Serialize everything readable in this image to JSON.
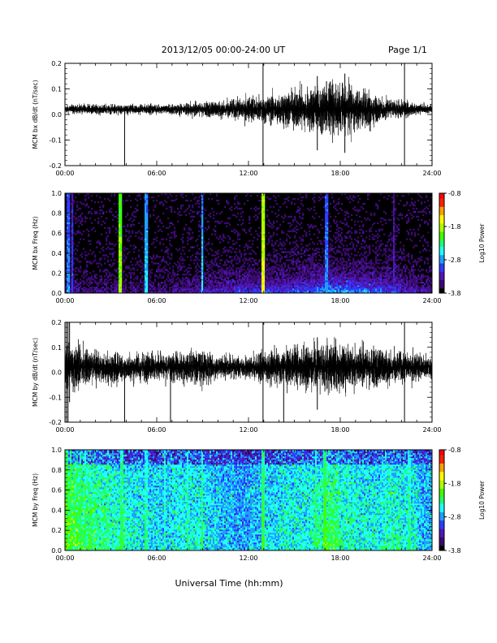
{
  "header": {
    "title": "2013/12/05  00:00-24:00 UT",
    "page_label": "Page 1/1"
  },
  "x_axis_title": "Universal Time (hh:mm)",
  "colorscale": {
    "colors": [
      "#000000",
      "#3a0a6e",
      "#4f16b4",
      "#2d3dff",
      "#1fa0ff",
      "#20ffff",
      "#20ff70",
      "#40ff00",
      "#b0ff00",
      "#ffff00",
      "#ffa000",
      "#ff2000",
      "#ff0000"
    ],
    "background": "#000000"
  },
  "chart_data": [
    {
      "type": "line",
      "ylabel": "MCM bx dB/dt (nT/sec)",
      "xticks": [
        "00:00",
        "06:00",
        "12:00",
        "18:00",
        "24:00"
      ],
      "xlim": [
        0,
        24
      ],
      "ylim": [
        -0.2,
        0.2
      ],
      "yticks": [
        "0.2",
        "0.1",
        "0.0",
        "-0.1",
        "-0.2"
      ],
      "ytick_values": [
        0.2,
        0.1,
        0.0,
        -0.1,
        -0.2
      ],
      "baseline": 0.02,
      "amplitude_profile": [
        {
          "t": 0,
          "amp": 0.01
        },
        {
          "t": 2,
          "amp": 0.012
        },
        {
          "t": 4,
          "amp": 0.012
        },
        {
          "t": 6,
          "amp": 0.012
        },
        {
          "t": 8,
          "amp": 0.015
        },
        {
          "t": 10,
          "amp": 0.02
        },
        {
          "t": 11,
          "amp": 0.025
        },
        {
          "t": 12,
          "amp": 0.03
        },
        {
          "t": 13,
          "amp": 0.035
        },
        {
          "t": 14,
          "amp": 0.04
        },
        {
          "t": 15,
          "amp": 0.05
        },
        {
          "t": 16,
          "amp": 0.055
        },
        {
          "t": 17,
          "amp": 0.065
        },
        {
          "t": 18,
          "amp": 0.06
        },
        {
          "t": 19,
          "amp": 0.05
        },
        {
          "t": 20,
          "amp": 0.04
        },
        {
          "t": 21,
          "amp": 0.03
        },
        {
          "t": 22,
          "amp": 0.02
        },
        {
          "t": 24,
          "amp": 0.01
        }
      ],
      "spikes": [
        {
          "t": 3.9,
          "lo": -0.2,
          "hi": 0.02
        },
        {
          "t": 12.95,
          "lo": -0.2,
          "hi": 0.2
        },
        {
          "t": 16.5,
          "lo": -0.14,
          "hi": 0.15
        },
        {
          "t": 17.1,
          "lo": -0.06,
          "hi": 0.13
        },
        {
          "t": 18.3,
          "lo": -0.15,
          "hi": 0.16
        },
        {
          "t": 22.2,
          "lo": -0.2,
          "hi": 0.2
        }
      ]
    },
    {
      "type": "heatmap",
      "ylabel": "MCM bx Freq (Hz)",
      "xticks": [
        "00:00",
        "06:00",
        "12:00",
        "18:00",
        "24:00"
      ],
      "xlim": [
        0,
        24
      ],
      "ylim": [
        0,
        1
      ],
      "yticks": [
        "1.0",
        "0.8",
        "0.6",
        "0.4",
        "0.2",
        "0.0"
      ],
      "ytick_values": [
        1.0,
        0.8,
        0.6,
        0.4,
        0.2,
        0.0
      ],
      "colorbar": {
        "label": "Log10 Power",
        "ticks": [
          "-0.8",
          "-1.8",
          "-2.8",
          "-3.8"
        ],
        "range": [
          -3.8,
          -0.8
        ]
      },
      "background_level": -3.8,
      "low_freq_level_by_hour": [
        -3.4,
        -3.5,
        -3.5,
        -3.4,
        -3.5,
        -3.5,
        -3.5,
        -3.4,
        -3.3,
        -3.3,
        -3.2,
        -3.1,
        -3.1,
        -3.0,
        -3.0,
        -2.9,
        -2.8,
        -2.7,
        -2.7,
        -2.8,
        -2.9,
        -3.0,
        -3.2,
        -3.4
      ],
      "vertical_features": [
        {
          "t": 0.2,
          "level": -2.8
        },
        {
          "t": 0.5,
          "level": -3.0
        },
        {
          "t": 3.6,
          "level": -1.8
        },
        {
          "t": 5.3,
          "level": -2.6
        },
        {
          "t": 9.0,
          "level": -2.6
        },
        {
          "t": 12.95,
          "level": -1.6
        },
        {
          "t": 17.1,
          "level": -2.8
        },
        {
          "t": 21.5,
          "level": -3.2
        }
      ]
    },
    {
      "type": "line",
      "ylabel": "MCM by dB/dt (nT/sec)",
      "xticks": [
        "00:00",
        "06:00",
        "12:00",
        "18:00",
        "24:00"
      ],
      "xlim": [
        0,
        24
      ],
      "ylim": [
        -0.2,
        0.2
      ],
      "yticks": [
        "0.2",
        "0.1",
        "0.0",
        "-0.1",
        "-0.2"
      ],
      "ytick_values": [
        0.2,
        0.1,
        0.0,
        -0.1,
        -0.2
      ],
      "baseline": 0.02,
      "amplitude_profile": [
        {
          "t": 0,
          "amp": 0.06
        },
        {
          "t": 1,
          "amp": 0.05
        },
        {
          "t": 2,
          "amp": 0.045
        },
        {
          "t": 3,
          "amp": 0.04
        },
        {
          "t": 4,
          "amp": 0.035
        },
        {
          "t": 5,
          "amp": 0.035
        },
        {
          "t": 6,
          "amp": 0.035
        },
        {
          "t": 7,
          "amp": 0.035
        },
        {
          "t": 8,
          "amp": 0.04
        },
        {
          "t": 9,
          "amp": 0.045
        },
        {
          "t": 10,
          "amp": 0.03
        },
        {
          "t": 11,
          "amp": 0.025
        },
        {
          "t": 12,
          "amp": 0.03
        },
        {
          "t": 13,
          "amp": 0.04
        },
        {
          "t": 14,
          "amp": 0.045
        },
        {
          "t": 15,
          "amp": 0.05
        },
        {
          "t": 16,
          "amp": 0.055
        },
        {
          "t": 17,
          "amp": 0.065
        },
        {
          "t": 18,
          "amp": 0.06
        },
        {
          "t": 19,
          "amp": 0.055
        },
        {
          "t": 20,
          "amp": 0.05
        },
        {
          "t": 21,
          "amp": 0.045
        },
        {
          "t": 22,
          "amp": 0.04
        },
        {
          "t": 23,
          "amp": 0.035
        },
        {
          "t": 24,
          "amp": 0.03
        }
      ],
      "spikes": [
        {
          "t": 0.1,
          "lo": -0.2,
          "hi": 0.2
        },
        {
          "t": 0.2,
          "lo": -0.2,
          "hi": 0.2
        },
        {
          "t": 0.3,
          "lo": -0.12,
          "hi": 0.2
        },
        {
          "t": 3.9,
          "lo": -0.2,
          "hi": 0.02
        },
        {
          "t": 6.9,
          "lo": -0.2,
          "hi": 0.05
        },
        {
          "t": 12.95,
          "lo": -0.2,
          "hi": 0.2
        },
        {
          "t": 14.3,
          "lo": -0.2,
          "hi": 0.02
        },
        {
          "t": 16.5,
          "lo": -0.15,
          "hi": 0.14
        },
        {
          "t": 22.2,
          "lo": -0.2,
          "hi": 0.2
        }
      ]
    },
    {
      "type": "heatmap",
      "ylabel": "MCM by Freq (Hz)",
      "xticks": [
        "00:00",
        "06:00",
        "12:00",
        "18:00",
        "24:00"
      ],
      "xlim": [
        0,
        24
      ],
      "ylim": [
        0,
        1
      ],
      "yticks": [
        "1.0",
        "0.8",
        "0.6",
        "0.4",
        "0.2",
        "0.0"
      ],
      "ytick_values": [
        1.0,
        0.8,
        0.6,
        0.4,
        0.2,
        0.0
      ],
      "colorbar": {
        "label": "Log10 Power",
        "ticks": [
          "-0.8",
          "-1.8",
          "-2.8",
          "-3.8"
        ],
        "range": [
          -3.8,
          -0.8
        ]
      },
      "background_level": -2.9,
      "low_freq_level_by_hour": [
        -2.1,
        -2.2,
        -2.3,
        -2.4,
        -2.5,
        -2.6,
        -2.6,
        -2.5,
        -2.5,
        -2.6,
        -2.7,
        -2.8,
        -2.7,
        -2.6,
        -2.5,
        -2.5,
        -2.4,
        -2.2,
        -2.4,
        -2.5,
        -2.5,
        -2.4,
        -2.5,
        -2.7
      ],
      "vertical_features": [
        {
          "t": 0.1,
          "level": -2.0
        },
        {
          "t": 0.4,
          "level": -2.1
        },
        {
          "t": 1.0,
          "level": -2.2
        },
        {
          "t": 1.3,
          "level": -2.3
        },
        {
          "t": 3.7,
          "level": -2.2
        },
        {
          "t": 5.3,
          "level": -2.3
        },
        {
          "t": 6.5,
          "level": -2.4
        },
        {
          "t": 8.0,
          "level": -2.3
        },
        {
          "t": 9.0,
          "level": -2.2
        },
        {
          "t": 12.95,
          "level": -2.1
        },
        {
          "t": 16.4,
          "level": -2.2
        },
        {
          "t": 17.0,
          "level": -2.0
        },
        {
          "t": 21.0,
          "level": -2.4
        },
        {
          "t": 22.5,
          "level": -2.3
        }
      ]
    }
  ]
}
